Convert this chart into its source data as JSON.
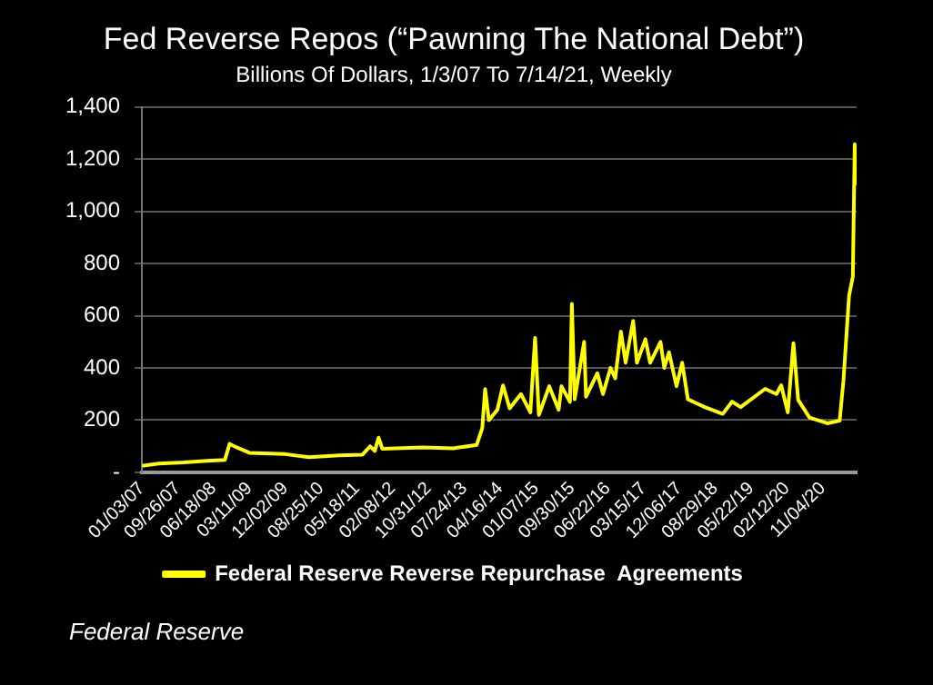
{
  "chart_data": {
    "type": "line",
    "title": "Fed Reverse Repos (“Pawning The National Debt”)",
    "subtitle": "Billions Of Dollars, 1/3/07 To 7/14/21, Weekly",
    "x": [
      "2007-01-03",
      "2007-05-09",
      "2007-11-07",
      "2008-05-01",
      "2008-09-10",
      "2008-10-15",
      "2008-12-10",
      "2009-03-11",
      "2009-12-02",
      "2010-05-26",
      "2011-01-05",
      "2011-06-29",
      "2011-08-24",
      "2011-09-28",
      "2011-10-26",
      "2011-11-23",
      "2012-09-19",
      "2013-05-01",
      "2013-10-23",
      "2013-12-04",
      "2013-12-25",
      "2014-01-22",
      "2014-03-26",
      "2014-05-07",
      "2014-06-25",
      "2014-09-17",
      "2014-11-26",
      "2014-12-31",
      "2015-01-28",
      "2015-04-15",
      "2015-06-24",
      "2015-07-15",
      "2015-09-16",
      "2015-09-30",
      "2015-10-21",
      "2015-12-30",
      "2016-01-13",
      "2016-04-06",
      "2016-05-18",
      "2016-07-13",
      "2016-08-17",
      "2016-09-28",
      "2016-11-02",
      "2016-12-28",
      "2017-01-25",
      "2017-03-29",
      "2017-05-03",
      "2017-07-19",
      "2017-08-16",
      "2017-09-20",
      "2017-11-15",
      "2017-12-27",
      "2018-02-07",
      "2018-06-13",
      "2018-10-24",
      "2019-01-02",
      "2019-03-06",
      "2019-09-04",
      "2019-11-27",
      "2020-01-01",
      "2020-02-19",
      "2020-04-01",
      "2020-05-06",
      "2020-07-29",
      "2020-12-09",
      "2021-03-10",
      "2021-04-07",
      "2021-05-19",
      "2021-06-16",
      "2021-06-30",
      "2021-07-14"
    ],
    "series": [
      {
        "name": "Federal Reserve Reverse Repurchase  Agreements",
        "color": "#ffff00",
        "values": [
          25,
          34,
          38,
          44,
          48,
          109,
          95,
          75,
          70,
          58,
          65,
          68,
          100,
          82,
          133,
          90,
          96,
          92,
          105,
          170,
          319,
          200,
          240,
          333,
          245,
          300,
          230,
          515,
          220,
          330,
          240,
          330,
          270,
          645,
          280,
          500,
          290,
          380,
          300,
          400,
          360,
          539,
          420,
          580,
          420,
          510,
          420,
          500,
          400,
          460,
          330,
          420,
          280,
          250,
          224,
          271,
          250,
          320,
          300,
          334,
          230,
          495,
          278,
          210,
          188,
          198,
          350,
          677,
          750,
          1257,
          1100
        ]
      }
    ],
    "xlim": [
      "2007-01-03",
      "2021-07-14"
    ],
    "xticks": [
      {
        "value": "2007-01-03",
        "label": "01/03/07"
      },
      {
        "value": "2007-09-26",
        "label": "09/26/07"
      },
      {
        "value": "2008-06-18",
        "label": "06/18/08"
      },
      {
        "value": "2009-03-11",
        "label": "03/11/09"
      },
      {
        "value": "2009-12-02",
        "label": "12/02/09"
      },
      {
        "value": "2010-08-25",
        "label": "08/25/10"
      },
      {
        "value": "2011-05-18",
        "label": "05/18/11"
      },
      {
        "value": "2012-02-08",
        "label": "02/08/12"
      },
      {
        "value": "2012-10-31",
        "label": "10/31/12"
      },
      {
        "value": "2013-07-24",
        "label": "07/24/13"
      },
      {
        "value": "2014-04-16",
        "label": "04/16/14"
      },
      {
        "value": "2015-01-07",
        "label": "01/07/15"
      },
      {
        "value": "2015-09-30",
        "label": "09/30/15"
      },
      {
        "value": "2016-06-22",
        "label": "06/22/16"
      },
      {
        "value": "2017-03-15",
        "label": "03/15/17"
      },
      {
        "value": "2017-12-06",
        "label": "12/06/17"
      },
      {
        "value": "2018-08-29",
        "label": "08/29/18"
      },
      {
        "value": "2019-05-22",
        "label": "05/22/19"
      },
      {
        "value": "2020-02-12",
        "label": "02/12/20"
      },
      {
        "value": "2020-11-04",
        "label": "11/04/20"
      }
    ],
    "ylim": [
      0,
      1400
    ],
    "yticks": [
      {
        "value": 0,
        "label": "-"
      },
      200,
      400,
      600,
      800,
      {
        "value": 1000,
        "label": "1,000"
      },
      {
        "value": 1200,
        "label": "1,200"
      },
      {
        "value": 1400,
        "label": "1,400"
      }
    ],
    "grid": "y",
    "legend": "bottom",
    "marker": "none",
    "line_style": "solid",
    "annotations": [
      "Federal Reserve"
    ]
  }
}
